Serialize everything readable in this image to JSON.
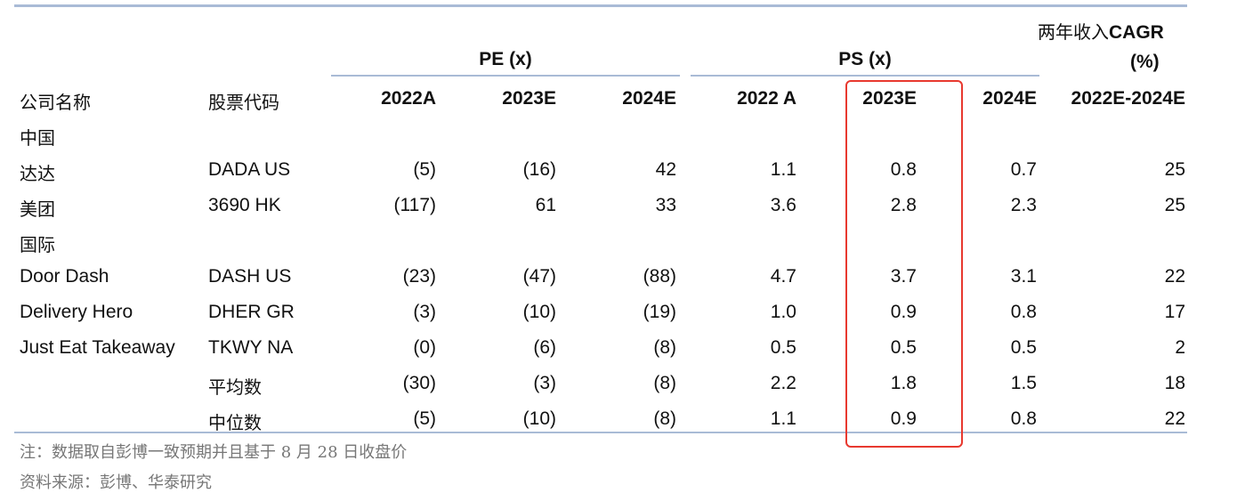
{
  "table": {
    "cagr_header_line1_cn": "两年收入",
    "cagr_header_line1_en": "CAGR",
    "cagr_header_line2": "(%)",
    "group_pe": "PE (x)",
    "group_ps": "PS (x)",
    "col_company": "公司名称",
    "col_ticker": "股票代码",
    "col_years": [
      "2022A",
      "2023E",
      "2024E",
      "2022 A",
      "2023E",
      "2024E",
      "2022E-2024E"
    ],
    "rows": [
      {
        "company": "中国",
        "ticker": "",
        "values": [
          "",
          "",
          "",
          "",
          "",
          "",
          ""
        ]
      },
      {
        "company": "达达",
        "ticker": "DADA US",
        "values": [
          "(5)",
          "(16)",
          "42",
          "1.1",
          "0.8",
          "0.7",
          "25"
        ]
      },
      {
        "company": "美团",
        "ticker": "3690 HK",
        "values": [
          "(117)",
          "61",
          "33",
          "3.6",
          "2.8",
          "2.3",
          "25"
        ]
      },
      {
        "company": "国际",
        "ticker": "",
        "values": [
          "",
          "",
          "",
          "",
          "",
          "",
          ""
        ]
      },
      {
        "company": "Door Dash",
        "ticker": "DASH US",
        "values": [
          "(23)",
          "(47)",
          "(88)",
          "4.7",
          "3.7",
          "3.1",
          "22"
        ]
      },
      {
        "company": "Delivery Hero",
        "ticker": "DHER GR",
        "values": [
          "(3)",
          "(10)",
          "(19)",
          "1.0",
          "0.9",
          "0.8",
          "17"
        ]
      },
      {
        "company": "Just Eat Takeaway",
        "ticker": "TKWY NA",
        "values": [
          "(0)",
          "(6)",
          "(8)",
          "0.5",
          "0.5",
          "0.5",
          "2"
        ]
      },
      {
        "company": "",
        "ticker": "平均数",
        "values": [
          "(30)",
          "(3)",
          "(8)",
          "2.2",
          "1.8",
          "1.5",
          "18"
        ]
      },
      {
        "company": "",
        "ticker": "中位数",
        "values": [
          "(5)",
          "(10)",
          "(8)",
          "1.1",
          "0.9",
          "0.8",
          "22"
        ]
      }
    ]
  },
  "notes": {
    "note": "注：数据取自彭博一致预期并且基于 8 月 28 日收盘价",
    "source": "资料来源：彭博、华泰研究"
  },
  "colors": {
    "rule": "#a9bbd6",
    "highlight": "#e8392f",
    "note_text": "#777777"
  }
}
